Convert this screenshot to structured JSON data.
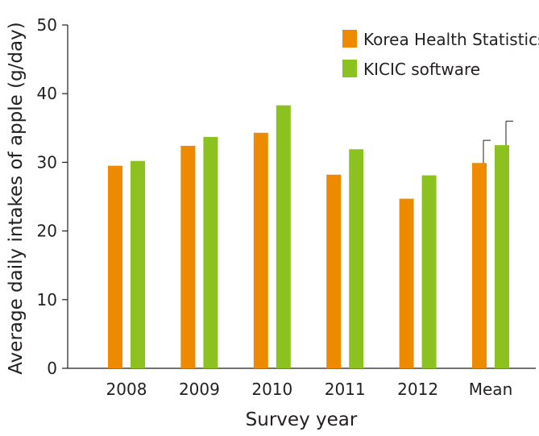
{
  "chart_data": {
    "type": "bar",
    "title": "",
    "xlabel": "Survey year",
    "ylabel": "Average daily intakes of apple (g/day)",
    "categories": [
      "2008",
      "2009",
      "2010",
      "2011",
      "2012",
      "Mean"
    ],
    "ylim": [
      0,
      50
    ],
    "yticks": [
      0,
      10,
      20,
      30,
      40,
      50
    ],
    "grid": false,
    "legend_position": "top-right",
    "series": [
      {
        "name": "Korea Health Statistics",
        "color": "#ee8a00",
        "values": [
          29.5,
          32.4,
          34.3,
          28.2,
          24.7,
          29.9
        ],
        "errors": [
          null,
          null,
          null,
          null,
          null,
          3.3
        ]
      },
      {
        "name": "KICIC software",
        "color": "#8cc21f",
        "values": [
          30.2,
          33.7,
          38.3,
          31.9,
          28.1,
          32.5
        ],
        "errors": [
          null,
          null,
          null,
          null,
          null,
          3.5
        ]
      }
    ]
  }
}
